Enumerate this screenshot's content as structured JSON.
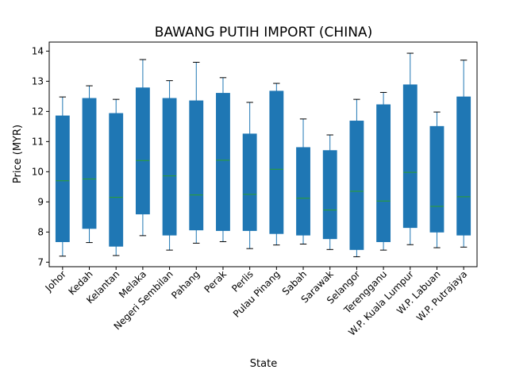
{
  "chart_data": {
    "type": "box",
    "title": "BAWANG PUTIH IMPORT (CHINA)",
    "xlabel": "State",
    "ylabel": "Price (MYR)",
    "ylim": [
      6.85,
      14.3
    ],
    "yticks": [
      7,
      8,
      9,
      10,
      11,
      12,
      13,
      14
    ],
    "categories": [
      "Johor",
      "Kedah",
      "Kelantan",
      "Melaka",
      "Negeri Sembilan",
      "Pahang",
      "Perak",
      "Perlis",
      "Pulau Pinang",
      "Sabah",
      "Sarawak",
      "Selangor",
      "Terengganu",
      "W.P. Kuala Lumpur",
      "W.P. Labuan",
      "W.P. Putrajaya"
    ],
    "boxes": [
      {
        "min": 7.2,
        "q1": 7.68,
        "median": 9.7,
        "q3": 11.85,
        "max": 12.48
      },
      {
        "min": 7.65,
        "q1": 8.12,
        "median": 9.76,
        "q3": 12.43,
        "max": 12.85
      },
      {
        "min": 7.22,
        "q1": 7.53,
        "median": 9.15,
        "q3": 11.93,
        "max": 12.4
      },
      {
        "min": 7.88,
        "q1": 8.6,
        "median": 10.37,
        "q3": 12.78,
        "max": 13.72
      },
      {
        "min": 7.4,
        "q1": 7.9,
        "median": 9.86,
        "q3": 12.43,
        "max": 13.02
      },
      {
        "min": 7.63,
        "q1": 8.07,
        "median": 9.23,
        "q3": 12.35,
        "max": 13.63
      },
      {
        "min": 7.68,
        "q1": 8.05,
        "median": 10.38,
        "q3": 12.6,
        "max": 13.12
      },
      {
        "min": 7.45,
        "q1": 8.05,
        "median": 9.25,
        "q3": 11.25,
        "max": 12.3
      },
      {
        "min": 7.57,
        "q1": 7.95,
        "median": 10.08,
        "q3": 12.67,
        "max": 12.93
      },
      {
        "min": 7.6,
        "q1": 7.9,
        "median": 9.12,
        "q3": 10.8,
        "max": 11.75
      },
      {
        "min": 7.42,
        "q1": 7.78,
        "median": 8.73,
        "q3": 10.7,
        "max": 11.22
      },
      {
        "min": 7.18,
        "q1": 7.42,
        "median": 9.35,
        "q3": 11.68,
        "max": 12.4
      },
      {
        "min": 7.4,
        "q1": 7.68,
        "median": 9.03,
        "q3": 12.22,
        "max": 12.63
      },
      {
        "min": 7.58,
        "q1": 8.15,
        "median": 9.98,
        "q3": 12.88,
        "max": 13.93
      },
      {
        "min": 7.48,
        "q1": 8.0,
        "median": 8.85,
        "q3": 11.5,
        "max": 11.98
      },
      {
        "min": 7.5,
        "q1": 7.9,
        "median": 9.17,
        "q3": 12.48,
        "max": 13.7
      }
    ],
    "colors": {
      "box": "#1f77b4",
      "median": "#2ca02c",
      "cap": "#000000"
    },
    "grid": false,
    "legend": "none"
  }
}
